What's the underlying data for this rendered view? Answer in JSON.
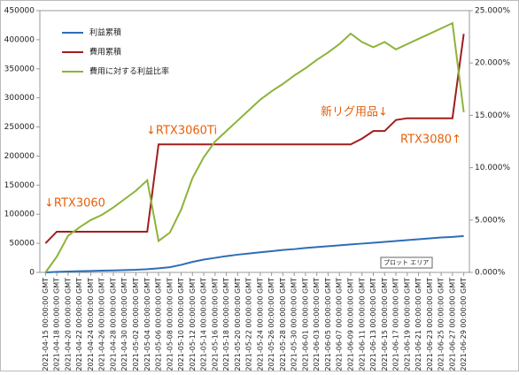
{
  "chart_data": {
    "type": "line",
    "categories": [
      "2021-04-15 00:00:00 GMT",
      "2021-04-18 00:00:00 GMT",
      "2021-04-20 00:00:00 GMT",
      "2021-04-22 00:00:00 GMT",
      "2021-04-24 00:00:00 GMT",
      "2021-04-26 00:00:00 GMT",
      "2021-04-28 00:00:00 GMT",
      "2021-04-30 00:00:00 GMT",
      "2021-05-02 00:00:00 GMT",
      "2021-05-04 00:00:00 GMT",
      "2021-05-06 00:00:00 GMT",
      "2021-05-08 00:00:00 GMT",
      "2021-05-10 00:00:00 GMT",
      "2021-05-12 00:00:00 GMT",
      "2021-05-14 00:00:00 GMT",
      "2021-05-16 00:00:00 GMT",
      "2021-05-18 00:00:00 GMT",
      "2021-05-20 00:00:00 GMT",
      "2021-05-22 00:00:00 GMT",
      "2021-05-24 00:00:00 GMT",
      "2021-05-26 00:00:00 GMT",
      "2021-05-28 00:00:00 GMT",
      "2021-05-30 00:00:00 GMT",
      "2021-06-01 00:00:00 GMT",
      "2021-06-03 00:00:00 GMT",
      "2021-06-05 00:00:00 GMT",
      "2021-06-07 00:00:00 GMT",
      "2021-06-09 00:00:00 GMT",
      "2021-06-11 00:00:00 GMT",
      "2021-06-13 00:00:00 GMT",
      "2021-06-15 00:00:00 GMT",
      "2021-06-17 00:00:00 GMT",
      "2021-06-19 00:00:00 GMT",
      "2021-06-21 00:00:00 GMT",
      "2021-06-23 00:00:00 GMT",
      "2021-06-25 00:00:00 GMT",
      "2021-06-27 00:00:00 GMT",
      "2021-06-29 00:00:00 GMT"
    ],
    "series": [
      {
        "name": "利益累積",
        "color": "#2e6eb5",
        "values": [
          0,
          1000,
          1500,
          2000,
          2500,
          3000,
          3500,
          4000,
          4500,
          5500,
          7000,
          9000,
          13000,
          18000,
          22000,
          25000,
          28000,
          30500,
          32500,
          34500,
          36500,
          38500,
          40000,
          42000,
          43500,
          45000,
          46500,
          48000,
          49500,
          51000,
          52500,
          54000,
          55500,
          57000,
          58500,
          60000,
          61000,
          62500
        ]
      },
      {
        "name": "費用累積",
        "color": "#a01e1e",
        "values": [
          50000,
          70000,
          70000,
          70000,
          70000,
          70000,
          70000,
          70000,
          70000,
          70000,
          220000,
          220000,
          220000,
          220000,
          220000,
          220000,
          220000,
          220000,
          220000,
          220000,
          220000,
          220000,
          220000,
          220000,
          220000,
          220000,
          220000,
          220000,
          230000,
          243000,
          243000,
          262000,
          265000,
          265000,
          265000,
          265000,
          265000,
          410000
        ]
      },
      {
        "name": "費用に対する利益比率",
        "color": "#8db33a",
        "axis": "y2",
        "values": [
          0,
          1.5,
          3.5,
          4.3,
          5,
          5.5,
          6.2,
          7,
          7.8,
          8.8,
          3,
          3.8,
          6,
          9,
          11,
          12.5,
          13.5,
          14.5,
          15.5,
          16.5,
          17.3,
          18,
          18.8,
          19.5,
          20.3,
          21,
          21.8,
          22.8,
          22,
          21.5,
          22,
          21.3,
          21.8,
          22.3,
          22.8,
          23.3,
          23.8,
          15.3
        ]
      }
    ],
    "ylim": [
      0,
      450000
    ],
    "yticks": [
      0,
      50000,
      100000,
      150000,
      200000,
      250000,
      300000,
      350000,
      400000,
      450000
    ],
    "y2lim": [
      0,
      25
    ],
    "y2ticks": [
      {
        "value": 0,
        "label": "0.000%"
      },
      {
        "value": 5,
        "label": "5.000%"
      },
      {
        "value": 10,
        "label": "10.000%"
      },
      {
        "value": 15,
        "label": "15.000%"
      },
      {
        "value": 20,
        "label": "20.000%"
      },
      {
        "value": 25,
        "label": "25.000%"
      }
    ],
    "grid": false,
    "legend": "top-left",
    "annotations": [
      "↓RTX3060",
      "↓RTX3060Ti",
      "新リグ用品↓",
      "RTX3080↑"
    ],
    "tooltip": "プロット エリア"
  }
}
